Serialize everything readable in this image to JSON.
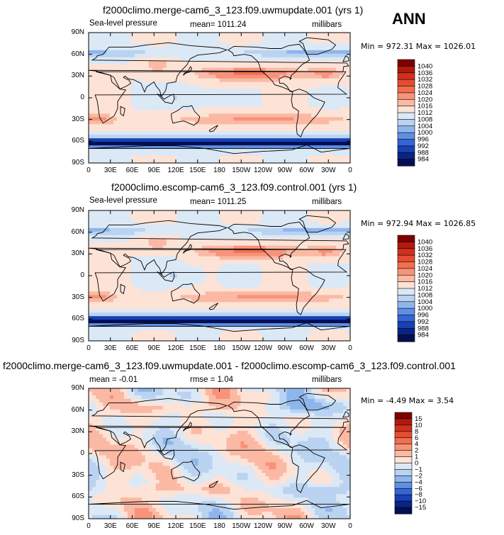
{
  "season": "ANN",
  "panels": [
    {
      "title": "f2000climo.merge-cam6_3_123.f09.uwmupdate.001 (yrs 1)",
      "variable": "Sea-level pressure",
      "mean_text": "mean=  1011.24",
      "units": "millibars",
      "minmax_text": "Min = 972.31 Max = 1026.01"
    },
    {
      "title": "f2000climo.escomp-cam6_3_123.f09.control.001 (yrs 1)",
      "variable": "Sea-level pressure",
      "mean_text": "mean=  1011.25",
      "units": "millibars",
      "minmax_text": "Min = 972.94 Max = 1026.85"
    },
    {
      "title": "f2000climo.merge-cam6_3_123.f09.uwmupdate.001 - f2000climo.escomp-cam6_3_123.f09.control.001",
      "variable": "mean =   -0.01",
      "mean_text": "rmse =   1.04",
      "units": "millibars",
      "minmax_text": "Min =  -4.49 Max =    3.54"
    }
  ],
  "chart_data": [
    {
      "type": "heatmap",
      "title": "f2000climo.merge-cam6_3_123.f09.uwmupdate.001 (yrs 1)",
      "variable": "Sea-level pressure",
      "units": "millibars",
      "mean": 1011.24,
      "min": 972.31,
      "max": 1026.01,
      "x_ticks": [
        "0",
        "30E",
        "60E",
        "90E",
        "120E",
        "150E",
        "180",
        "150W",
        "120W",
        "90W",
        "60W",
        "30W",
        "0"
      ],
      "y_ticks": [
        "90N",
        "60N",
        "30N",
        "0",
        "30S",
        "60S",
        "90S"
      ],
      "colorbar_levels": [
        "1040",
        "1036",
        "1032",
        "1028",
        "1024",
        "1020",
        "1016",
        "1012",
        "1008",
        "1004",
        "1000",
        "996",
        "992",
        "988",
        "984"
      ],
      "colorbar_colors": [
        "#7f0000",
        "#b01a0e",
        "#d32f1c",
        "#e44d33",
        "#f06f4f",
        "#f7937a",
        "#fbb9a4",
        "#fde2d6",
        "#dbe8f6",
        "#b9d3f1",
        "#8fb6ec",
        "#5f90e3",
        "#3566d6",
        "#1741b5",
        "#0b2384",
        "#040f52"
      ],
      "field": "slp"
    },
    {
      "type": "heatmap",
      "title": "f2000climo.escomp-cam6_3_123.f09.control.001 (yrs 1)",
      "variable": "Sea-level pressure",
      "units": "millibars",
      "mean": 1011.25,
      "min": 972.94,
      "max": 1026.85,
      "x_ticks": [
        "0",
        "30E",
        "60E",
        "90E",
        "120E",
        "150E",
        "180",
        "150W",
        "120W",
        "90W",
        "60W",
        "30W",
        "0"
      ],
      "y_ticks": [
        "90N",
        "60N",
        "30N",
        "0",
        "30S",
        "60S",
        "90S"
      ],
      "colorbar_levels": [
        "1040",
        "1036",
        "1032",
        "1028",
        "1024",
        "1020",
        "1016",
        "1012",
        "1008",
        "1004",
        "1000",
        "996",
        "992",
        "988",
        "984"
      ],
      "colorbar_colors": [
        "#7f0000",
        "#b01a0e",
        "#d32f1c",
        "#e44d33",
        "#f06f4f",
        "#f7937a",
        "#fbb9a4",
        "#fde2d6",
        "#dbe8f6",
        "#b9d3f1",
        "#8fb6ec",
        "#5f90e3",
        "#3566d6",
        "#1741b5",
        "#0b2384",
        "#040f52"
      ],
      "field": "slp"
    },
    {
      "type": "heatmap",
      "title": "f2000climo.merge-cam6_3_123.f09.uwmupdate.001 - f2000climo.escomp-cam6_3_123.f09.control.001",
      "units": "millibars",
      "mean": -0.01,
      "rmse": 1.04,
      "min": -4.49,
      "max": 3.54,
      "x_ticks": [
        "0",
        "30E",
        "60E",
        "90E",
        "120E",
        "150E",
        "180",
        "150W",
        "120W",
        "90W",
        "60W",
        "30W",
        "0"
      ],
      "y_ticks": [
        "90N",
        "60N",
        "30N",
        "0",
        "30S",
        "60S",
        "90S"
      ],
      "colorbar_levels": [
        "15",
        "10",
        "8",
        "6",
        "4",
        "2",
        "1",
        "0",
        "−1",
        "−2",
        "−4",
        "−6",
        "−8",
        "−10",
        "−15"
      ],
      "colorbar_colors": [
        "#7f0000",
        "#b01a0e",
        "#d32f1c",
        "#e44d33",
        "#f06f4f",
        "#f7937a",
        "#fbb9a4",
        "#fde2d6",
        "#dbe8f6",
        "#b9d3f1",
        "#8fb6ec",
        "#5f90e3",
        "#3566d6",
        "#1741b5",
        "#0b2384",
        "#040f52"
      ],
      "field": "diff"
    }
  ]
}
